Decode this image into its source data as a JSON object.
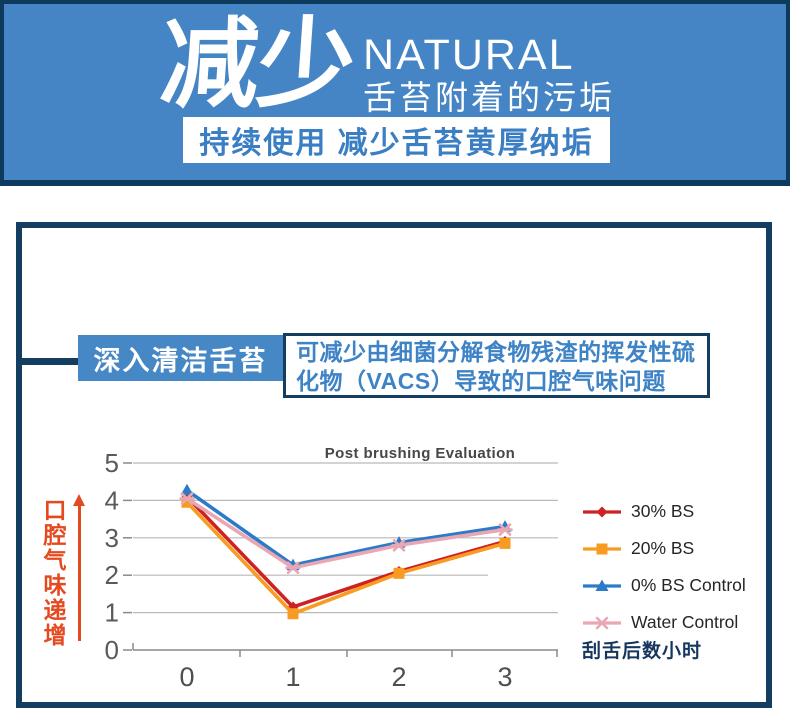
{
  "banner": {
    "headline": "减少",
    "subtitle_en": "NATURAL",
    "subtitle_zh": "舌苔附着的污垢",
    "tagline": "持续使用 减少舌苔黄厚纳垢",
    "bg_color": "#4585c5",
    "border_color": "#0e3a5e"
  },
  "card": {
    "border_color": "#133e62",
    "label": "深入清洁舌苔",
    "label_bg": "#4687c6",
    "description_line1": "可减少由细菌分解食物残渣的挥发性硫",
    "description_line2": "化物（VACS）导致的口腔气味问题",
    "description_color": "#3d83c6",
    "y_axis_caption": "口腔气味递增",
    "y_axis_caption_color": "#e5491f",
    "x_axis_caption": "刮舌后数小时"
  },
  "chart_data": {
    "type": "line",
    "title": "Post brushing Evaluation",
    "categories": [
      "0",
      "1",
      "2",
      "3"
    ],
    "x": [
      0,
      1,
      2,
      3
    ],
    "y_ticks": [
      0,
      1,
      2,
      3,
      4,
      5
    ],
    "ylim": [
      0,
      5
    ],
    "xlabel": "刮舌后数小时",
    "ylabel": "口腔气味递增",
    "grid": true,
    "legend_position": "right",
    "series": [
      {
        "name": "30% BS",
        "color": "#ce2121",
        "marker": "diamond",
        "values": [
          4.1,
          1.15,
          2.1,
          2.9
        ]
      },
      {
        "name": "20% BS",
        "color": "#f79b22",
        "marker": "square",
        "values": [
          3.95,
          0.97,
          2.05,
          2.85
        ]
      },
      {
        "name": "0% BS Control",
        "color": "#2d7ac8",
        "marker": "triangle",
        "values": [
          4.27,
          2.27,
          2.87,
          3.3
        ]
      },
      {
        "name": "Water Control",
        "color": "#e9a7b4",
        "marker": "x",
        "values": [
          4.05,
          2.2,
          2.8,
          3.22
        ]
      }
    ]
  }
}
